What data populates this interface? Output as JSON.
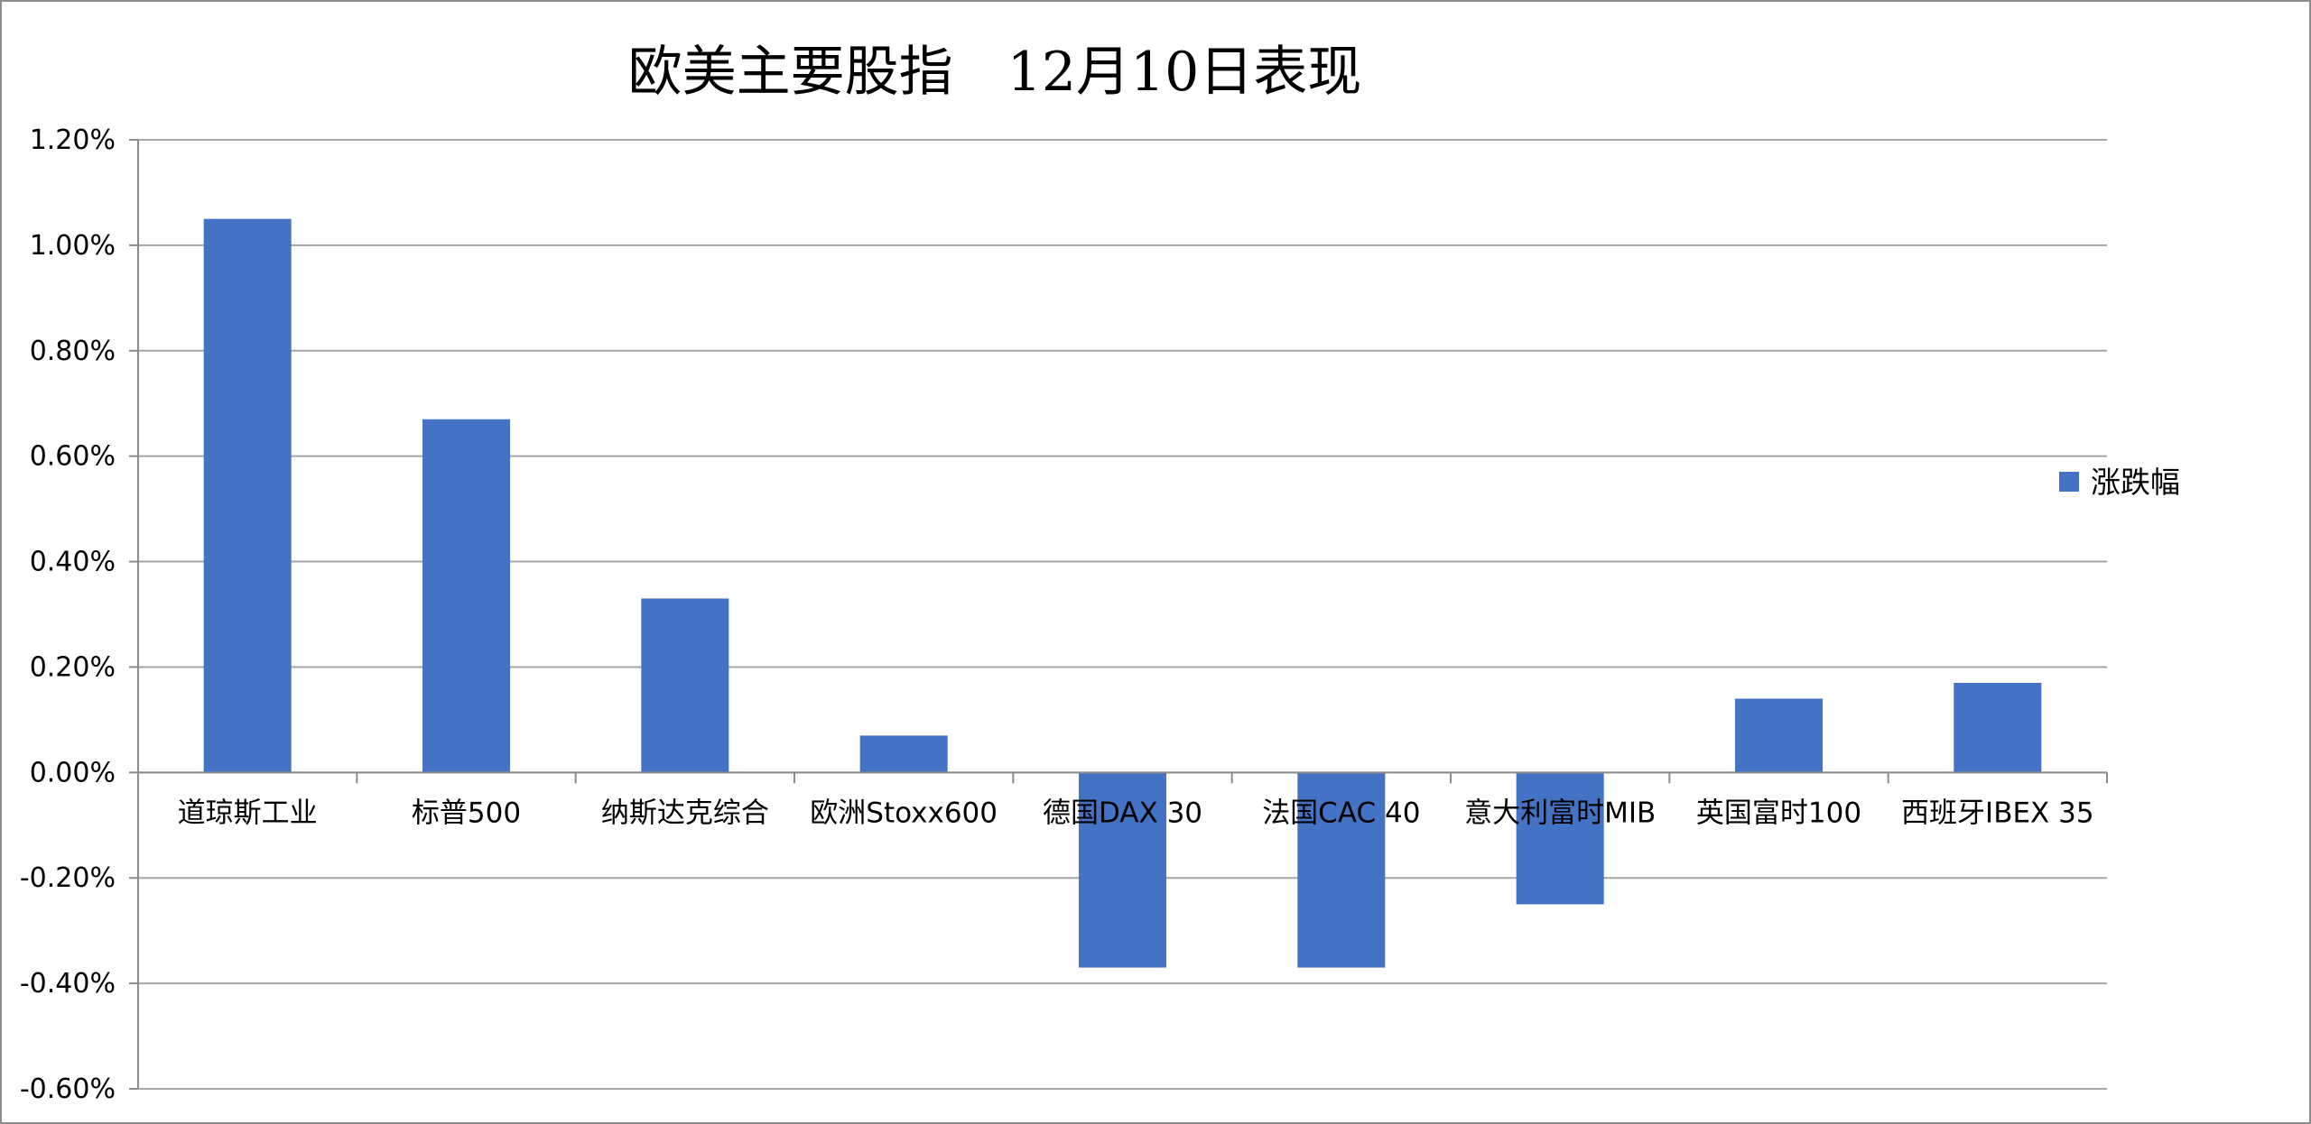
{
  "chart_data": {
    "type": "bar",
    "title": "欧美主要股指　12月10日表现",
    "categories": [
      "道琼斯工业",
      "标普500",
      "纳斯达克综合",
      "欧洲Stoxx600",
      "德国DAX 30",
      "法国CAC 40",
      "意大利富时MIB",
      "英国富时100",
      "西班牙IBEX 35"
    ],
    "series": [
      {
        "name": "涨跌幅",
        "values": [
          1.05,
          0.67,
          0.33,
          0.07,
          -0.37,
          -0.37,
          -0.25,
          0.14,
          0.17
        ],
        "color": "#4472C4"
      }
    ],
    "value_unit": "%",
    "ylim": [
      -0.6,
      1.2
    ],
    "yticks": [
      "1.20%",
      "1.00%",
      "0.80%",
      "0.60%",
      "0.40%",
      "0.20%",
      "0.00%",
      "-0.20%",
      "-0.40%",
      "-0.60%"
    ],
    "xlabel": "",
    "ylabel": "",
    "grid": true,
    "gridline_color": "#a6a6a6",
    "legend_position": "right"
  }
}
